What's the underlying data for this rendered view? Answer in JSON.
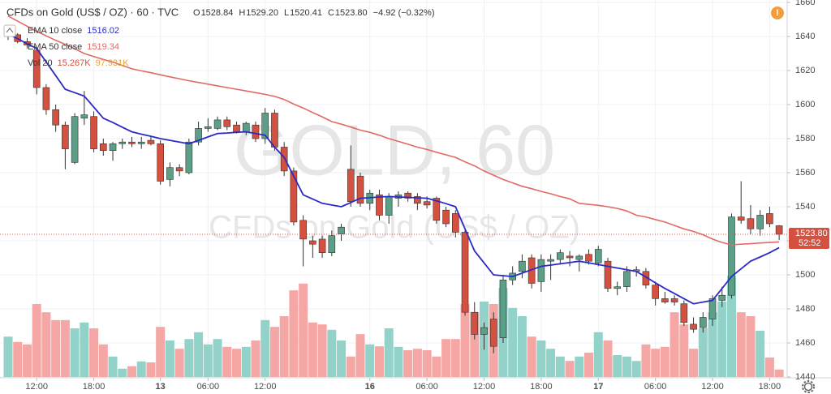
{
  "chart_data": {
    "type": "candlestick",
    "title": "CFDs on Gold (US$ / OZ) · 60 · TVC",
    "ohlc_labels": [
      "O",
      "H",
      "L",
      "C"
    ],
    "ohlc_values": [
      "1528.84",
      "1529.20",
      "1520.41",
      "1523.80"
    ],
    "change": "−4.92 (−0.32%)",
    "alert": "!",
    "watermark": [
      "GOLD, 60",
      "CFDs on Gold (US$ / OZ)"
    ],
    "up_color": "#5b9f86",
    "down_color": "#d4503f",
    "volume_up_color": "#93d2c9",
    "volume_down_color": "#f4a7a5",
    "open": [
      1640,
      1641,
      1637,
      1632,
      1610,
      1597,
      1588,
      1566,
      1592,
      1593,
      1577,
      1573,
      1577,
      1578,
      1577,
      1579,
      1577,
      1556,
      1563,
      1560,
      1578,
      1586,
      1586,
      1591,
      1588,
      1584,
      1588,
      1580,
      1595,
      1575,
      1561,
      1532,
      1520,
      1521,
      1513,
      1524,
      1562,
      1558,
      1542,
      1547,
      1535,
      1545,
      1548,
      1546,
      1543,
      1545,
      1538,
      1536,
      1525,
      1478,
      1465,
      1474,
      1463,
      1497,
      1502,
      1510,
      1496,
      1508,
      1509,
      1511,
      1509,
      1512,
      1507,
      1508,
      1492,
      1493,
      1502,
      1502,
      1494,
      1486,
      1486,
      1483,
      1471,
      1469,
      1474,
      1485,
      1488,
      1534,
      1533,
      1527,
      1536,
      1528.84
    ],
    "high": [
      1643,
      1642,
      1639,
      1634,
      1612,
      1600,
      1590,
      1595,
      1608,
      1596,
      1580,
      1578,
      1580,
      1581,
      1581,
      1581,
      1579,
      1566,
      1565,
      1580,
      1590,
      1592,
      1593,
      1593,
      1590,
      1590,
      1590,
      1598,
      1597,
      1578,
      1563,
      1535,
      1523,
      1523,
      1526,
      1530,
      1576,
      1560,
      1550,
      1550,
      1548,
      1549,
      1549,
      1548,
      1546,
      1546,
      1540,
      1538,
      1527,
      1484,
      1472,
      1478,
      1500,
      1505,
      1512,
      1512,
      1512,
      1512,
      1515,
      1514,
      1512,
      1515,
      1517,
      1510,
      1496,
      1505,
      1505,
      1504,
      1496,
      1490,
      1488,
      1485,
      1475,
      1478,
      1488,
      1493,
      1536,
      1555,
      1541,
      1538,
      1540,
      1529.2
    ],
    "low": [
      1638,
      1636,
      1633,
      1606,
      1594,
      1584,
      1562,
      1565,
      1588,
      1572,
      1570,
      1567,
      1574,
      1575,
      1574,
      1576,
      1553,
      1552,
      1558,
      1559,
      1576,
      1584,
      1585,
      1585,
      1583,
      1582,
      1578,
      1577,
      1573,
      1558,
      1529,
      1505,
      1510,
      1510,
      1511,
      1520,
      1540,
      1540,
      1538,
      1532,
      1530,
      1540,
      1543,
      1538,
      1539,
      1530,
      1528,
      1522,
      1476,
      1462,
      1456,
      1454,
      1460,
      1494,
      1498,
      1492,
      1490,
      1497,
      1506,
      1505,
      1502,
      1506,
      1505,
      1490,
      1488,
      1490,
      1499,
      1492,
      1482,
      1483,
      1482,
      1470,
      1466,
      1466,
      1470,
      1481,
      1486,
      1530,
      1524,
      1523,
      1528,
      1520.41
    ],
    "close": [
      1642,
      1637,
      1635,
      1610,
      1597,
      1588,
      1574,
      1593,
      1594,
      1574,
      1573,
      1577,
      1578,
      1577,
      1578,
      1577,
      1555,
      1563,
      1561,
      1578,
      1586,
      1587,
      1591,
      1587,
      1584,
      1589,
      1580,
      1595,
      1575,
      1561,
      1531,
      1521,
      1518,
      1513,
      1523,
      1528,
      1543,
      1542,
      1548,
      1535,
      1546,
      1547,
      1545,
      1542,
      1541,
      1532,
      1530,
      1525,
      1478,
      1465,
      1469,
      1458,
      1497,
      1501,
      1508,
      1495,
      1509,
      1509,
      1513,
      1510,
      1511,
      1508,
      1515,
      1492,
      1493,
      1502,
      1503,
      1494,
      1486,
      1484,
      1484,
      1472,
      1468,
      1475,
      1486,
      1488,
      1534,
      1532,
      1527,
      1535,
      1530,
      1523.8
    ],
    "volume": [
      83,
      72,
      67,
      150,
      133,
      117,
      117,
      100,
      112,
      100,
      67,
      42,
      17,
      22,
      32,
      30,
      103,
      75,
      58,
      78,
      92,
      67,
      78,
      62,
      58,
      62,
      75,
      117,
      103,
      125,
      178,
      192,
      112,
      108,
      97,
      75,
      42,
      88,
      67,
      63,
      100,
      62,
      55,
      58,
      55,
      42,
      78,
      78,
      150,
      133,
      155,
      150,
      183,
      142,
      125,
      83,
      75,
      58,
      42,
      33,
      42,
      50,
      92,
      75,
      45,
      42,
      33,
      67,
      58,
      62,
      133,
      108,
      58,
      100,
      133,
      155,
      208,
      133,
      125,
      95,
      40,
      15.267
    ],
    "volume_lim": [
      0,
      250
    ],
    "volume_name": "Vol 20",
    "volume_label": "15.267K",
    "volume_ma_label": "97.931K",
    "volume_ma_color": "#e2a33b",
    "last_price_label": "1523.80",
    "countdown": "52:52",
    "series": [
      {
        "name": "EMA 10 close",
        "color": "#2b2bc4",
        "values": [
          1641.4,
          1638.7,
          1635.7,
          1633,
          1625,
          1617,
          1609,
          1607,
          1605,
          1598.5,
          1592,
          1589.5,
          1586.7,
          1584,
          1582.6,
          1581.4,
          1580,
          1579,
          1578,
          1577,
          1579,
          1581,
          1583,
          1583.3,
          1583.7,
          1584,
          1583,
          1582,
          1575,
          1569,
          1558,
          1547,
          1544.5,
          1542,
          1541,
          1540,
          1542.5,
          1545,
          1545.3,
          1545.7,
          1546,
          1545.7,
          1545.5,
          1545.2,
          1545,
          1543.5,
          1541.8,
          1540,
          1527,
          1514,
          1507,
          1500,
          1499.5,
          1499,
          1501,
          1503,
          1505,
          1505.7,
          1506.5,
          1507.2,
          1508,
          1507,
          1506,
          1505,
          1504,
          1503,
          1502,
          1498.7,
          1495.3,
          1492,
          1489,
          1486,
          1483,
          1484,
          1485,
          1492,
          1499,
          1503.5,
          1508,
          1510.5,
          1513,
          1516.02
        ]
      },
      {
        "name": "EMA 50 close",
        "color": "#e06a66",
        "values": [
          1652,
          1649,
          1646,
          1643,
          1640.4,
          1637.7,
          1635.4,
          1632.8,
          1630,
          1628.2,
          1626.5,
          1625,
          1623,
          1621,
          1619.8,
          1618.7,
          1617.5,
          1616.3,
          1615.2,
          1614,
          1613,
          1612,
          1611,
          1610,
          1609,
          1608,
          1607,
          1606,
          1604.8,
          1603,
          1600.3,
          1598,
          1595.3,
          1592.8,
          1590,
          1588.5,
          1586.8,
          1585,
          1583.7,
          1582,
          1580,
          1578.4,
          1576.7,
          1575,
          1573.6,
          1572,
          1570.5,
          1569,
          1566.4,
          1564,
          1561,
          1558.5,
          1556,
          1554,
          1552,
          1550.6,
          1549,
          1547.6,
          1546,
          1544.6,
          1542,
          1541.4,
          1540.8,
          1540,
          1539,
          1537.5,
          1535,
          1534,
          1532.5,
          1531,
          1529,
          1527,
          1525.5,
          1523.5,
          1521,
          1519,
          1517.6,
          1518,
          1518.3,
          1518.7,
          1519,
          1519.34
        ]
      }
    ],
    "ylim": [
      1440,
      1660
    ],
    "yticks": [
      1440,
      1460,
      1480,
      1500,
      1520,
      1540,
      1560,
      1580,
      1600,
      1620,
      1640,
      1660
    ],
    "xticks": [
      {
        "value": 3,
        "label": "12:00"
      },
      {
        "value": 9,
        "label": "18:00"
      },
      {
        "value": 16,
        "label": "13"
      },
      {
        "value": 21,
        "label": "06:00"
      },
      {
        "value": 27,
        "label": "12:00"
      },
      {
        "value": 38,
        "label": "16"
      },
      {
        "value": 44,
        "label": "06:00"
      },
      {
        "value": 50,
        "label": "12:00"
      },
      {
        "value": 56,
        "label": "18:00"
      },
      {
        "value": 62,
        "label": "17"
      },
      {
        "value": 68,
        "label": "06:00"
      },
      {
        "value": 74,
        "label": "12:00"
      },
      {
        "value": 80,
        "label": "18:00"
      }
    ],
    "grid": true
  }
}
